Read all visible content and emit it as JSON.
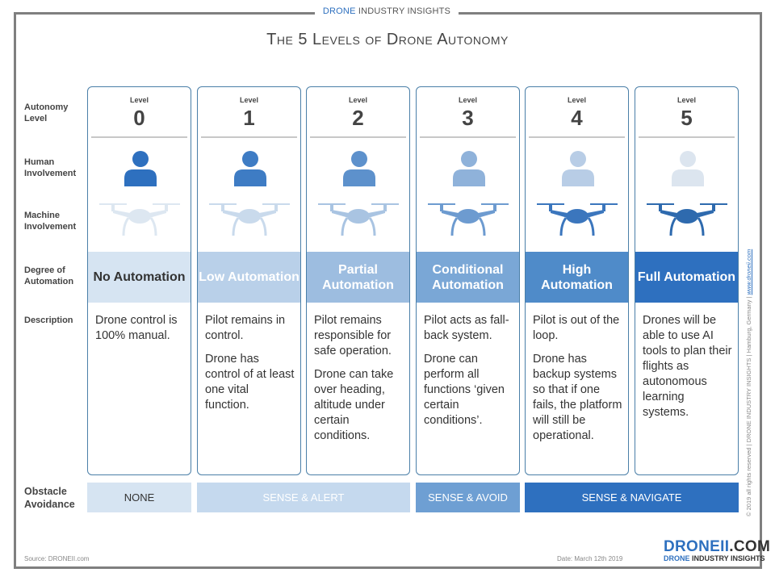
{
  "header": {
    "brand_a": "DRONE",
    "brand_b": " INDUSTRY INSIGHTS",
    "title": "The 5 Levels of Drone Autonomy"
  },
  "row_labels": {
    "autonomy": "Autonomy Level",
    "human": "Human Involvement",
    "machine": "Machine Involvement",
    "degree": "Degree of Automation",
    "description": "Description",
    "obstacle": "Obstacle Avoidance"
  },
  "levels": [
    {
      "word": "Level",
      "number": "0",
      "automation": "No Automation",
      "auto_bg": "#d6e4f2",
      "auto_fg": "#333333",
      "person_color": "#2e70bf",
      "drone_color": "#dde7f1",
      "description": [
        "Drone control is 100% manual."
      ]
    },
    {
      "word": "Level",
      "number": "1",
      "automation": "Low Automation",
      "auto_bg": "#b9d0e9",
      "auto_fg": "#ffffff",
      "person_color": "#3e7cc4",
      "drone_color": "#c9daec",
      "description": [
        "Pilot remains in control.",
        "Drone has control of at least one vital function."
      ]
    },
    {
      "word": "Level",
      "number": "2",
      "automation": "Partial Automation",
      "auto_bg": "#9dbde0",
      "auto_fg": "#ffffff",
      "person_color": "#5d91cc",
      "drone_color": "#a9c4e2",
      "description": [
        "Pilot remains responsible for safe operation.",
        "Drone can take over heading, altitude under certain conditions."
      ]
    },
    {
      "word": "Level",
      "number": "3",
      "automation": "Conditional Automation",
      "auto_bg": "#7aa7d6",
      "auto_fg": "#ffffff",
      "person_color": "#8fb2da",
      "drone_color": "#6d9bd0",
      "description": [
        "Pilot acts as fall-back system.",
        "Drone can perform all functions ‘given certain conditions’."
      ]
    },
    {
      "word": "Level",
      "number": "4",
      "automation": "High Automation",
      "auto_bg": "#4f8bc9",
      "auto_fg": "#ffffff",
      "person_color": "#b8cde6",
      "drone_color": "#3b76bd",
      "description": [
        "Pilot is out of the loop.",
        "Drone has backup systems so that if one fails, the platform will still be operational."
      ]
    },
    {
      "word": "Level",
      "number": "5",
      "automation": "Full Automation",
      "auto_bg": "#2e70bf",
      "auto_fg": "#ffffff",
      "person_color": "#dce5ef",
      "drone_color": "#2e6aae",
      "description": [
        "Drones will be able to use AI tools to plan their flights as autonomous learning systems."
      ]
    }
  ],
  "obstacle": [
    {
      "label": "NONE",
      "bg": "#d6e4f2",
      "fg": "#333333",
      "from": 0,
      "to": 0
    },
    {
      "label": "SENSE & ALERT",
      "bg": "#c5d9ee",
      "fg": "#ffffff",
      "from": 1,
      "to": 2
    },
    {
      "label": "SENSE & AVOID",
      "bg": "#6e9fd3",
      "fg": "#ffffff",
      "from": 3,
      "to": 3
    },
    {
      "label": "SENSE & NAVIGATE",
      "bg": "#2e70bf",
      "fg": "#ffffff",
      "from": 4,
      "to": 5
    }
  ],
  "side_text": {
    "copyright": "© 2019 all rights reserved  |  DRONE INDUSTRY INSIGHTS  |  Hamburg, Germany  |  ",
    "url": "www.droneii.com"
  },
  "footer": {
    "source": "Source: DRONEII.com",
    "date": "Date: March 12th 2019",
    "logo_a": "DRONEII",
    "logo_b": ".COM",
    "logo_c": "DRONE",
    "logo_d": " INDUSTRY INSIGHTS"
  }
}
